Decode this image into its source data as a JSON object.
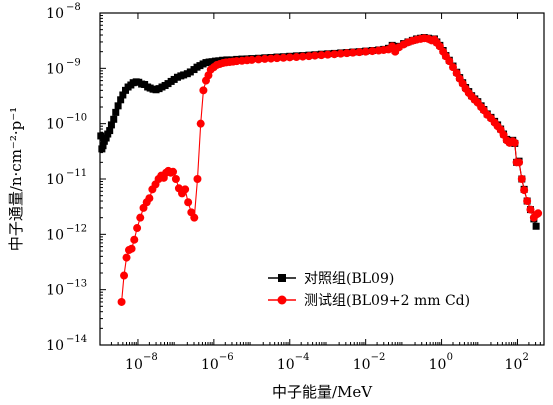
{
  "chart_data": {
    "type": "scatter",
    "xlabel": "中子能量/MeV",
    "ylabel": "中子通量/n·cm⁻²·p⁻¹",
    "xscale": "log",
    "yscale": "log",
    "xlim": [
      1e-09,
      500
    ],
    "ylim": [
      1e-14,
      1e-08
    ],
    "x_ticks": [
      {
        "value": 1e-08,
        "base": "10",
        "exp": "−8"
      },
      {
        "value": 1e-06,
        "base": "10",
        "exp": "−6"
      },
      {
        "value": 0.0001,
        "base": "10",
        "exp": "−4"
      },
      {
        "value": 0.01,
        "base": "10",
        "exp": "−2"
      },
      {
        "value": 1,
        "base": "10",
        "exp": "0"
      },
      {
        "value": 100,
        "base": "10",
        "exp": "2"
      }
    ],
    "y_ticks": [
      {
        "value": 1e-14,
        "base": "10",
        "exp": "−14"
      },
      {
        "value": 1e-13,
        "base": "10",
        "exp": "−13"
      },
      {
        "value": 1e-12,
        "base": "10",
        "exp": "−12"
      },
      {
        "value": 1e-11,
        "base": "10",
        "exp": "−11"
      },
      {
        "value": 1e-10,
        "base": "10",
        "exp": "−10"
      },
      {
        "value": 1e-09,
        "base": "10",
        "exp": "−9"
      },
      {
        "value": 1e-08,
        "base": "10",
        "exp": "−8"
      }
    ],
    "legend_position": "bottom-right",
    "series": [
      {
        "name": "对照组(BL09)",
        "color": "#000000",
        "marker": "square",
        "points": [
          [
            1.05e-09,
            6e-11
          ],
          [
            1.12e-09,
            3.5e-11
          ],
          [
            1.2e-09,
            4e-11
          ],
          [
            1.3e-09,
            4.8e-11
          ],
          [
            1.45e-09,
            5.5e-11
          ],
          [
            1.6e-09,
            6.5e-11
          ],
          [
            1.8e-09,
            7.5e-11
          ],
          [
            2e-09,
            9.5e-11
          ],
          [
            2.3e-09,
            1.2e-10
          ],
          [
            2.6e-09,
            1.6e-10
          ],
          [
            3e-09,
            2.1e-10
          ],
          [
            3.5e-09,
            2.7e-10
          ],
          [
            4e-09,
            3.3e-10
          ],
          [
            4.7e-09,
            4e-10
          ],
          [
            5.5e-09,
            4.6e-10
          ],
          [
            6.5e-09,
            5e-10
          ],
          [
            7.5e-09,
            5.5e-10
          ],
          [
            9e-09,
            5.7e-10
          ],
          [
            1.05e-08,
            5.6e-10
          ],
          [
            1.25e-08,
            5.2e-10
          ],
          [
            1.5e-08,
            5.1e-10
          ],
          [
            1.8e-08,
            4.6e-10
          ],
          [
            2.1e-08,
            4.4e-10
          ],
          [
            2.5e-08,
            4.2e-10
          ],
          [
            3e-08,
            4.1e-10
          ],
          [
            3.6e-08,
            4.3e-10
          ],
          [
            4.3e-08,
            4.6e-10
          ],
          [
            5.2e-08,
            4.9e-10
          ],
          [
            6.2e-08,
            5.3e-10
          ],
          [
            7.5e-08,
            5.8e-10
          ],
          [
            9e-08,
            6.3e-10
          ],
          [
            1.1e-07,
            6.9e-10
          ],
          [
            1.35e-07,
            7.3e-10
          ],
          [
            1.6e-07,
            7.6e-10
          ],
          [
            2e-07,
            8e-10
          ],
          [
            2.4e-07,
            8.6e-10
          ],
          [
            3e-07,
            9.5e-10
          ],
          [
            3.6e-07,
            1.05e-09
          ],
          [
            4.3e-07,
            1.12e-09
          ],
          [
            5.2e-07,
            1.2e-09
          ],
          [
            6.2e-07,
            1.27e-09
          ],
          [
            7.5e-07,
            1.3e-09
          ],
          [
            9e-07,
            1.32e-09
          ],
          [
            1.1e-06,
            1.35e-09
          ],
          [
            1.35e-06,
            1.37e-09
          ],
          [
            1.7e-06,
            1.4e-09
          ],
          [
            2.2e-06,
            1.42e-09
          ],
          [
            3e-06,
            1.42e-09
          ],
          [
            4e-06,
            1.45e-09
          ],
          [
            5.5e-06,
            1.47e-09
          ],
          [
            7.5e-06,
            1.48e-09
          ],
          [
            1e-05,
            1.5e-09
          ],
          [
            1.5e-05,
            1.52e-09
          ],
          [
            2.2e-05,
            1.55e-09
          ],
          [
            3.2e-05,
            1.57e-09
          ],
          [
            4.6e-05,
            1.6e-09
          ],
          [
            6.8e-05,
            1.62e-09
          ],
          [
            0.0001,
            1.65e-09
          ],
          [
            0.00015,
            1.68e-09
          ],
          [
            0.00022,
            1.7e-09
          ],
          [
            0.00032,
            1.73e-09
          ],
          [
            0.00046,
            1.76e-09
          ],
          [
            0.00068,
            1.8e-09
          ],
          [
            0.001,
            1.83e-09
          ],
          [
            0.0015,
            1.86e-09
          ],
          [
            0.0022,
            1.9e-09
          ],
          [
            0.0032,
            1.93e-09
          ],
          [
            0.0046,
            1.97e-09
          ],
          [
            0.0068,
            2e-09
          ],
          [
            0.01,
            2.05e-09
          ],
          [
            0.015,
            2.1e-09
          ],
          [
            0.022,
            2.15e-09
          ],
          [
            0.03,
            2.2e-09
          ],
          [
            0.04,
            2.3e-09
          ],
          [
            0.05,
            2.6e-09
          ],
          [
            0.06,
            2.1e-09
          ],
          [
            0.075,
            2.5e-09
          ],
          [
            0.1,
            2.8e-09
          ],
          [
            0.13,
            3e-09
          ],
          [
            0.17,
            3.2e-09
          ],
          [
            0.22,
            3.4e-09
          ],
          [
            0.28,
            3.5e-09
          ],
          [
            0.35,
            3.6e-09
          ],
          [
            0.45,
            3.5e-09
          ],
          [
            0.55,
            3.3e-09
          ],
          [
            0.65,
            3.4e-09
          ],
          [
            0.75,
            3e-09
          ],
          [
            0.9,
            2.6e-09
          ],
          [
            1.1,
            2.1e-09
          ],
          [
            1.3,
            1.7e-09
          ],
          [
            1.6,
            1.4e-09
          ],
          [
            2.0,
            1.1e-09
          ],
          [
            2.5,
            8.5e-10
          ],
          [
            3.0,
            6.8e-10
          ],
          [
            3.6,
            5.5e-10
          ],
          [
            4.3,
            4.5e-10
          ],
          [
            5.2,
            3.8e-10
          ],
          [
            6.2,
            3.2e-10
          ],
          [
            7.5,
            2.8e-10
          ],
          [
            9.0,
            2.5e-10
          ],
          [
            11,
            2.1e-10
          ],
          [
            13,
            1.8e-10
          ],
          [
            16,
            1.5e-10
          ],
          [
            20,
            1.3e-10
          ],
          [
            25,
            1.1e-10
          ],
          [
            30,
            9.5e-11
          ],
          [
            36,
            8e-11
          ],
          [
            43,
            6.5e-11
          ],
          [
            52,
            5.2e-11
          ],
          [
            62,
            4.7e-11
          ],
          [
            75,
            5e-11
          ],
          [
            85,
            4.4e-11
          ],
          [
            95,
            2e-11
          ],
          [
            110,
            2.1e-11
          ],
          [
            130,
            1e-11
          ],
          [
            150,
            6.5e-12
          ],
          [
            180,
            4e-12
          ],
          [
            220,
            2.8e-12
          ],
          [
            270,
            1.9e-12
          ],
          [
            310,
            1.4e-12
          ]
        ]
      },
      {
        "name": "测试组(BL09+2 mm Cd)",
        "color": "#ff0000",
        "marker": "circle",
        "points": [
          [
            3.7e-09,
            6e-14
          ],
          [
            4.3e-09,
            1.8e-13
          ],
          [
            5e-09,
            3.8e-13
          ],
          [
            5.8e-09,
            5.2e-13
          ],
          [
            6.8e-09,
            5.5e-13
          ],
          [
            8e-09,
            8e-13
          ],
          [
            9.5e-09,
            1.3e-12
          ],
          [
            1.15e-08,
            2e-12
          ],
          [
            1.4e-08,
            3e-12
          ],
          [
            1.7e-08,
            3.8e-12
          ],
          [
            2e-08,
            4.5e-12
          ],
          [
            2.4e-08,
            6.5e-12
          ],
          [
            2.9e-08,
            8e-12
          ],
          [
            3.5e-08,
            1e-11
          ],
          [
            4.1e-08,
            1.15e-11
          ],
          [
            4.8e-08,
            1.05e-11
          ],
          [
            5.5e-08,
            1.3e-11
          ],
          [
            6.3e-08,
            1.4e-11
          ],
          [
            7.3e-08,
            1.3e-11
          ],
          [
            8.4e-08,
            1.35e-11
          ],
          [
            1e-07,
            1e-11
          ],
          [
            1.2e-07,
            6.8e-12
          ],
          [
            1.45e-07,
            5.5e-12
          ],
          [
            1.75e-07,
            6.5e-12
          ],
          [
            2.1e-07,
            3.8e-12
          ],
          [
            2.55e-07,
            2.5e-12
          ],
          [
            3.05e-07,
            2e-12
          ],
          [
            3.7e-07,
            1e-11
          ],
          [
            4.5e-07,
            1e-10
          ],
          [
            5.3e-07,
            4e-10
          ],
          [
            6.2e-07,
            6e-10
          ],
          [
            7.2e-07,
            7.5e-10
          ],
          [
            8.3e-07,
            9.5e-10
          ],
          [
            1e-06,
            1.05e-09
          ],
          [
            1.2e-06,
            1.15e-09
          ],
          [
            1.45e-06,
            1.2e-09
          ],
          [
            1.75e-06,
            1.25e-09
          ],
          [
            2.1e-06,
            1.28e-09
          ],
          [
            2.6e-06,
            1.3e-09
          ],
          [
            3.2e-06,
            1.32e-09
          ],
          [
            4e-06,
            1.35e-09
          ],
          [
            5.5e-06,
            1.37e-09
          ],
          [
            7.5e-06,
            1.4e-09
          ],
          [
            1e-05,
            1.42e-09
          ],
          [
            1.5e-05,
            1.45e-09
          ],
          [
            2.2e-05,
            1.48e-09
          ],
          [
            3.2e-05,
            1.5e-09
          ],
          [
            4.6e-05,
            1.53e-09
          ],
          [
            6.8e-05,
            1.55e-09
          ],
          [
            0.0001,
            1.58e-09
          ],
          [
            0.00015,
            1.6e-09
          ],
          [
            0.00022,
            1.63e-09
          ],
          [
            0.00032,
            1.66e-09
          ],
          [
            0.00046,
            1.7e-09
          ],
          [
            0.00068,
            1.73e-09
          ],
          [
            0.001,
            1.77e-09
          ],
          [
            0.0015,
            1.8e-09
          ],
          [
            0.0022,
            1.84e-09
          ],
          [
            0.0032,
            1.88e-09
          ],
          [
            0.0046,
            1.92e-09
          ],
          [
            0.0068,
            1.96e-09
          ],
          [
            0.01,
            2e-09
          ],
          [
            0.015,
            2.05e-09
          ],
          [
            0.022,
            2.1e-09
          ],
          [
            0.03,
            2.15e-09
          ],
          [
            0.04,
            2.2e-09
          ],
          [
            0.05,
            2.5e-09
          ],
          [
            0.06,
            2e-09
          ],
          [
            0.075,
            2.4e-09
          ],
          [
            0.1,
            2.7e-09
          ],
          [
            0.13,
            2.95e-09
          ],
          [
            0.17,
            3.15e-09
          ],
          [
            0.22,
            3.3e-09
          ],
          [
            0.28,
            3.4e-09
          ],
          [
            0.35,
            3.5e-09
          ],
          [
            0.45,
            3.4e-09
          ],
          [
            0.55,
            3.2e-09
          ],
          [
            0.65,
            3.3e-09
          ],
          [
            0.75,
            2.9e-09
          ],
          [
            0.9,
            2.5e-09
          ],
          [
            1.1,
            2e-09
          ],
          [
            1.3,
            1.65e-09
          ],
          [
            1.6,
            1.35e-09
          ],
          [
            2.0,
            1.05e-09
          ],
          [
            2.5,
            8.2e-10
          ],
          [
            3.0,
            6.5e-10
          ],
          [
            3.6,
            5.3e-10
          ],
          [
            4.3,
            4.3e-10
          ],
          [
            5.2,
            3.6e-10
          ],
          [
            6.2,
            3.1e-10
          ],
          [
            7.5,
            2.7e-10
          ],
          [
            9.0,
            2.4e-10
          ],
          [
            11,
            2e-10
          ],
          [
            13,
            1.75e-10
          ],
          [
            16,
            1.45e-10
          ],
          [
            20,
            1.25e-10
          ],
          [
            25,
            1.05e-10
          ],
          [
            30,
            9e-11
          ],
          [
            36,
            7.8e-11
          ],
          [
            43,
            6.3e-11
          ],
          [
            52,
            5e-11
          ],
          [
            62,
            4.5e-11
          ],
          [
            75,
            4.8e-11
          ],
          [
            85,
            4.5e-11
          ],
          [
            95,
            2e-11
          ],
          [
            110,
            2e-11
          ],
          [
            130,
            1e-11
          ],
          [
            150,
            6.3e-12
          ],
          [
            180,
            4e-12
          ],
          [
            220,
            2.8e-12
          ],
          [
            270,
            2e-12
          ],
          [
            320,
            2.3e-12
          ],
          [
            350,
            2.4e-12
          ]
        ]
      }
    ]
  }
}
